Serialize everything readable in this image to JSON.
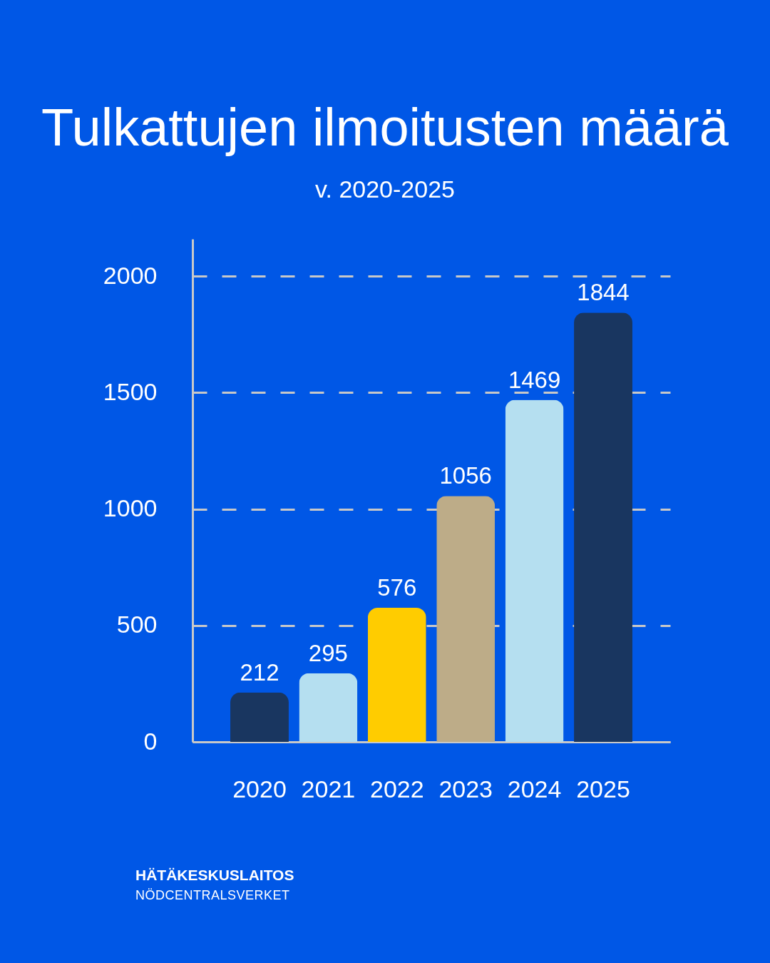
{
  "chart_data": {
    "type": "bar",
    "title": "Tulkattujen ilmoitusten määrä",
    "subtitle": "v. 2020-2025",
    "categories": [
      "2020",
      "2021",
      "2022",
      "2023",
      "2024",
      "2025"
    ],
    "values": [
      212,
      295,
      576,
      1056,
      1469,
      1844
    ],
    "colors": [
      "#193660",
      "#b5dff0",
      "#ffcc00",
      "#bdac88",
      "#b5dff0",
      "#193660"
    ],
    "ylim": [
      0,
      2160
    ],
    "yticks": [
      0,
      500,
      1000,
      1500,
      2000
    ],
    "grid": "y",
    "data_labels": true,
    "annotations": [
      "HÄTÄKESKUSLAITOS",
      "NÖDCENTRALSVERKET"
    ]
  }
}
